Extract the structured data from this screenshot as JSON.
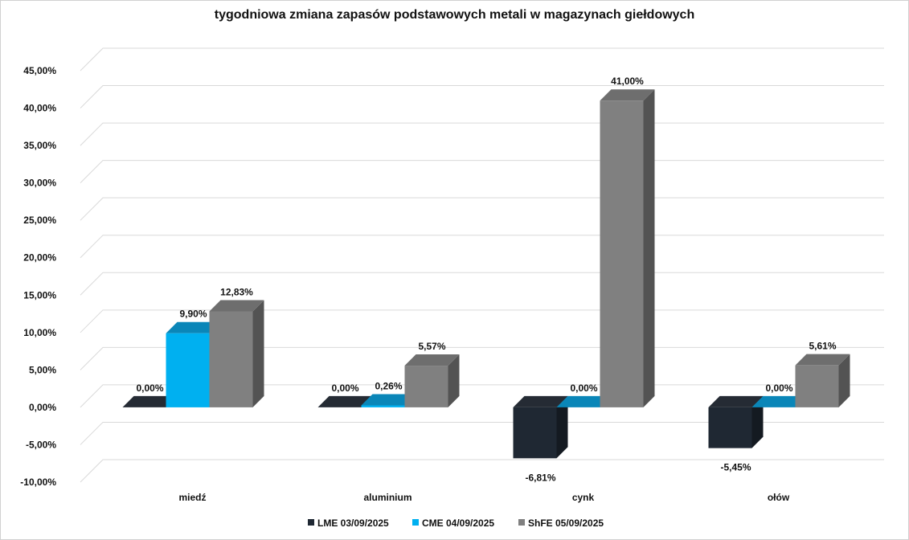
{
  "chart_data": {
    "type": "bar",
    "title": "tygodniowa zmiana zapasów podstawowych metali w magazynach giełdowych",
    "categories": [
      "miedź",
      "aluminium",
      "cynk",
      "ołów"
    ],
    "series": [
      {
        "name": "LME 03/09/2025",
        "values": [
          0.0,
          0.0,
          -6.81,
          -5.45
        ],
        "labels": [
          "0,00%",
          "0,00%",
          "-6,81%",
          "-5,45%"
        ],
        "color": "#1f2833"
      },
      {
        "name": "CME 04/09/2025",
        "values": [
          9.9,
          0.26,
          0.0,
          0.0
        ],
        "labels": [
          "9,90%",
          "0,26%",
          "0,00%",
          "0,00%"
        ],
        "color": "#00b0f0"
      },
      {
        "name": "ShFE 05/09/2025",
        "values": [
          12.83,
          5.57,
          41.0,
          5.61
        ],
        "labels": [
          "12,83%",
          "5,57%",
          "41,00%",
          "5,61%"
        ],
        "color": "#808080"
      }
    ],
    "y_ticks": [
      45,
      40,
      35,
      30,
      25,
      20,
      15,
      10,
      5,
      0,
      -5,
      -10
    ],
    "y_tick_labels": [
      "45,00%",
      "40,00%",
      "35,00%",
      "30,00%",
      "25,00%",
      "20,00%",
      "15,00%",
      "10,00%",
      "5,00%",
      "0,00%",
      "-5,00%",
      "-10,00%"
    ],
    "ylim": [
      -10,
      45
    ],
    "grid": true,
    "legend_position": "bottom",
    "style": "3d-clustered-column"
  }
}
